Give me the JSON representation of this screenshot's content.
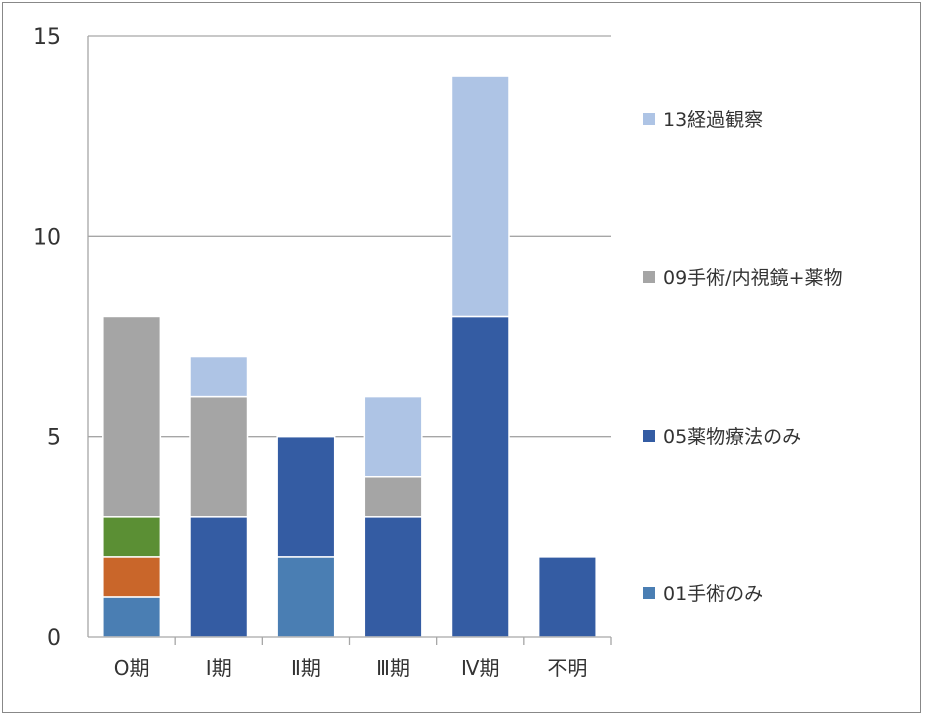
{
  "chart_data": {
    "type": "bar",
    "stacked": true,
    "categories": [
      "O期",
      "Ⅰ期",
      "Ⅱ期",
      "Ⅲ期",
      "Ⅳ期",
      "不明"
    ],
    "ylim": [
      0,
      15
    ],
    "yticks": [
      "0",
      "5",
      "10",
      "15"
    ],
    "grid": true,
    "legend_position": "right",
    "series": [
      {
        "name": "01手術のみ",
        "color": "#4a7eb3",
        "values": [
          1,
          0,
          2,
          0,
          0,
          0
        ]
      },
      {
        "name": "",
        "color": "#c9662a",
        "values": [
          1,
          0,
          0,
          0,
          0,
          0
        ]
      },
      {
        "name": "",
        "color": "#5b8f34",
        "values": [
          1,
          0,
          0,
          0,
          0,
          0
        ]
      },
      {
        "name": "05薬物療法のみ",
        "color": "#345ca3",
        "values": [
          0,
          3,
          3,
          3,
          8,
          2
        ]
      },
      {
        "name": "09手術/内視鏡+薬物",
        "color": "#a5a5a5",
        "values": [
          5,
          3,
          0,
          1,
          0,
          0
        ]
      },
      {
        "name": "13経過観察",
        "color": "#aec4e5",
        "values": [
          0,
          1,
          0,
          2,
          6,
          0
        ]
      }
    ],
    "legend_order": [
      5,
      4,
      3,
      0
    ]
  }
}
